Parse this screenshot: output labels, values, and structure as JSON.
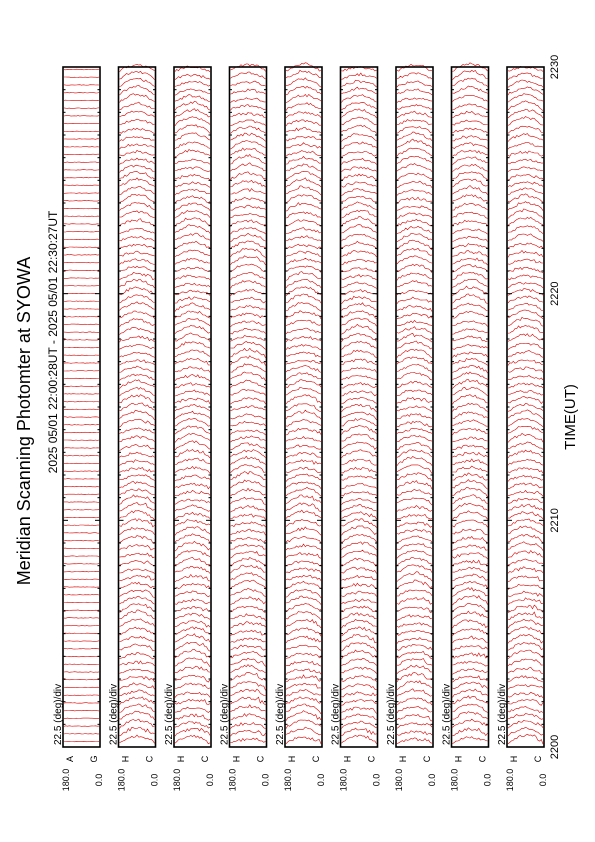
{
  "title": "Meridian Scanning Photomter at SYOWA",
  "subtitle": "2025 05/01 22:00:28UT - 2025 05/01 22:30:27UT",
  "colors": {
    "trace": "#dd0000",
    "axis": "#000000",
    "background": "#ffffff"
  },
  "chart_data": {
    "type": "line",
    "orientation": "rotated-90-ccw",
    "xlabel": "TIME(UT)",
    "x_ticks": [
      "2200",
      "2210",
      "2220",
      "2230"
    ],
    "x_range": [
      "2200",
      "2230"
    ],
    "ylim": [
      0.0,
      180.0
    ],
    "y_ticks": [
      "0.0",
      "180.0"
    ],
    "scale_label": "22.5 (deg)/div",
    "grid": false,
    "panels": [
      {
        "channel": "A",
        "channel_alt": "G",
        "scale_label": "22.5 (deg)/div"
      },
      {
        "channel": "H",
        "channel_alt": "C",
        "scale_label": "22.5 (deg)/div"
      },
      {
        "channel": "H",
        "channel_alt": "C",
        "scale_label": "22.5 (deg)/div"
      },
      {
        "channel": "H",
        "channel_alt": "C",
        "scale_label": "22.5 (deg)/div"
      },
      {
        "channel": "H",
        "channel_alt": "C",
        "scale_label": "22.5 (deg)/div"
      },
      {
        "channel": "H",
        "channel_alt": "C",
        "scale_label": "22.5 (deg)/div"
      },
      {
        "channel": "H",
        "channel_alt": "C",
        "scale_label": "22.5 (deg)/div"
      },
      {
        "channel": "H",
        "channel_alt": "C",
        "scale_label": "22.5 (deg)/div"
      },
      {
        "channel": "H",
        "channel_alt": "C",
        "scale_label": "22.5 (deg)/div"
      }
    ]
  }
}
